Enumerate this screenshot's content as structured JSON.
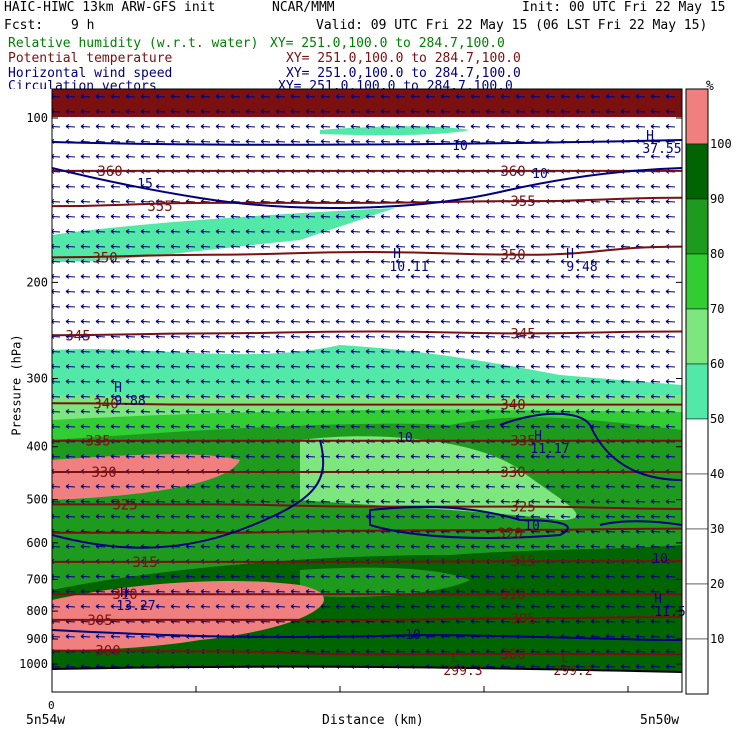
{
  "header": {
    "model": "HAIC-HIWC 13km ARW-GFS init",
    "org": "NCAR/MMM",
    "init": "Init: 00 UTC Fri 22 May 15",
    "fcst_label": "Fcst:",
    "fcst_value": "9 h",
    "valid": "Valid: 09 UTC Fri 22 May 15 (06 LST Fri 22 May 15)"
  },
  "fields": [
    {
      "name": "Relative humidity (w.r.t. water)",
      "xy": "XY= 251.0,100.0 to 284.7,100.0",
      "color": "#008000"
    },
    {
      "name": "Potential temperature",
      "xy": "XY= 251.0,100.0 to 284.7,100.0",
      "color": "#7a1010"
    },
    {
      "name": "Horizontal wind speed",
      "xy": "XY= 251.0,100.0 to 284.7,100.0",
      "color": "#000080"
    },
    {
      "name": "Circulation vectors",
      "xy": "XY= 251.0,100.0 to 284.7,100.0",
      "color": "#000080"
    }
  ],
  "axes": {
    "ylabel": "Pressure (hPa)",
    "xlabel": "Distance (km)",
    "x_origin": "0",
    "left_loc": "5n54w",
    "right_loc": "5n50w",
    "yticks": [
      "100",
      "200",
      "300",
      "400",
      "500",
      "600",
      "700",
      "800",
      "900",
      "1000"
    ]
  },
  "colorbar": {
    "unit": "%",
    "labels": [
      "100",
      "90",
      "80",
      "70",
      "60",
      "50",
      "40",
      "30",
      "20",
      "10"
    ],
    "colors": [
      "#f08080",
      "#006400",
      "#1e9a1e",
      "#32cd32",
      "#7ee67e",
      "#52e8a8",
      "#ffffff",
      "#ffffff",
      "#ffffff",
      "#ffffff",
      "#ffffff"
    ]
  },
  "chart_data": {
    "type": "cross-section",
    "ylim": [
      1050,
      100
    ],
    "y_scale": "log",
    "theta_contours": [
      {
        "value": 360,
        "label": "360",
        "p": [
          125,
          125,
          125,
          125,
          125
        ]
      },
      {
        "value": 355,
        "label": "355",
        "p": [
          145,
          143,
          143,
          142,
          140
        ]
      },
      {
        "value": 350,
        "label": "350",
        "p": [
          180,
          178,
          176,
          178,
          172
        ]
      },
      {
        "value": 345,
        "label": "345",
        "p": [
          250,
          248,
          246,
          248,
          246
        ]
      },
      {
        "value": 340,
        "label": "340",
        "p": [
          333,
          335,
          335,
          335,
          335
        ]
      },
      {
        "value": 335,
        "label": "335",
        "p": [
          390,
          390,
          390,
          390,
          390
        ]
      },
      {
        "value": 330,
        "label": "330",
        "p": [
          445,
          445,
          445,
          445,
          445
        ]
      },
      {
        "value": 325,
        "label": "325",
        "p": [
          510,
          510,
          515,
          515,
          520
        ]
      },
      {
        "value": 320,
        "label": "320",
        "p": [
          575,
          575,
          570,
          568,
          565
        ]
      },
      {
        "value": 315,
        "label": "315",
        "p": [
          650,
          650,
          650,
          648,
          648
        ]
      },
      {
        "value": 310,
        "label": "310",
        "p": [
          745,
          745,
          745,
          745,
          745
        ]
      },
      {
        "value": 305,
        "label": "305",
        "p": [
          830,
          830,
          830,
          825,
          820
        ]
      },
      {
        "value": 300,
        "label": "300",
        "p": [
          945,
          948,
          960,
          958,
          960
        ]
      }
    ],
    "wind_speed_contours": [
      {
        "label": "10"
      },
      {
        "label": "15"
      },
      {
        "label": "10"
      },
      {
        "label": "10"
      },
      {
        "label": "10"
      },
      {
        "label": "10"
      },
      {
        "label": "10"
      }
    ],
    "extrema": [
      {
        "type": "H",
        "value": "10.11"
      },
      {
        "type": "H",
        "value": "9.48"
      },
      {
        "type": "H",
        "value": "9.88"
      },
      {
        "type": "H",
        "value": "11.17"
      },
      {
        "type": "H",
        "value": "13.27"
      },
      {
        "type": "H",
        "value": "11.5"
      },
      {
        "type": "L",
        "value": "299.3"
      },
      {
        "type": "L",
        "value": "299.2"
      },
      {
        "type": "H",
        "value": "37.55"
      }
    ]
  }
}
